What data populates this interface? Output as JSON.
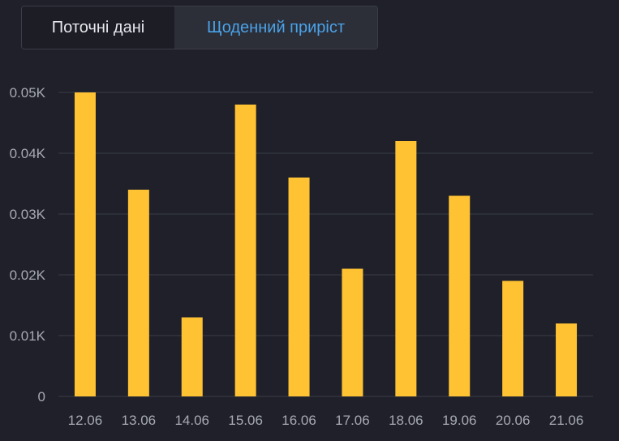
{
  "tabs": {
    "current_label": "Поточні дані",
    "daily_label": "Щоденний приріст",
    "active": "daily"
  },
  "colors": {
    "background": "#1f2029",
    "bar": "#ffc233",
    "grid": "#3a3c47",
    "tick_text": "#a7a9b3",
    "active_tab_text": "#4aa3e8"
  },
  "chart_data": {
    "type": "bar",
    "categories": [
      "12.06",
      "13.06",
      "14.06",
      "15.06",
      "16.06",
      "17.06",
      "18.06",
      "19.06",
      "20.06",
      "21.06"
    ],
    "values": [
      50,
      34,
      13,
      48,
      36,
      21,
      42,
      33,
      19,
      12
    ],
    "ylim": [
      0,
      50
    ],
    "yticks": [
      {
        "value": 0,
        "label": "0"
      },
      {
        "value": 10,
        "label": "0.01K"
      },
      {
        "value": 20,
        "label": "0.02K"
      },
      {
        "value": 30,
        "label": "0.03K"
      },
      {
        "value": 40,
        "label": "0.04K"
      },
      {
        "value": 50,
        "label": "0.05K"
      }
    ],
    "grid": true,
    "legend": "none"
  }
}
